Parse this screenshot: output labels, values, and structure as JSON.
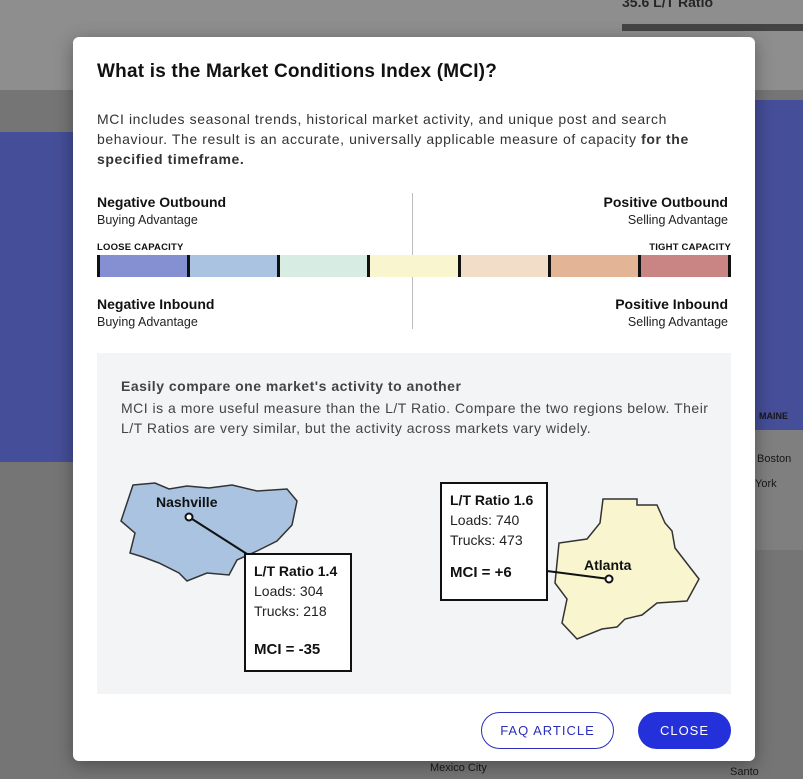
{
  "background": {
    "ratio_text": "35.6 L/T Ratio",
    "labels": {
      "maine": "MAINE",
      "boston": "Boston",
      "york": "York",
      "mexico_city": "Mexico City",
      "santo": "Santo"
    }
  },
  "modal": {
    "title": "What is the Market Conditions Index (MCI)?",
    "description": "MCI includes seasonal trends, historical market activity, and unique post and search behaviour. The result is an accurate, universally applicable measure of capacity",
    "description_bold": "for the specified timeframe.",
    "scale": {
      "top_left": {
        "heading": "Negative Outbound",
        "sub": "Buying Advantage"
      },
      "top_right": {
        "heading": "Positive Outbound",
        "sub": "Selling Advantage"
      },
      "bottom_left": {
        "heading": "Negative Inbound",
        "sub": "Buying Advantage"
      },
      "bottom_right": {
        "heading": "Positive Inbound",
        "sub": "Selling Advantage"
      },
      "loose_label": "LOOSE CAPACITY",
      "tight_label": "TIGHT CAPACITY",
      "colors": [
        "#8590d3",
        "#a9c3e1",
        "#d7ece2",
        "#f8f5cf",
        "#f2ddc9",
        "#e4b496",
        "#c98583"
      ]
    },
    "compare": {
      "heading": "Easily compare one market's activity to another",
      "body": "MCI is a more useful measure than the L/T Ratio. Compare the two regions below. Their L/T Ratios are very similar, but the activity across markets vary widely.",
      "nashville": {
        "city": "Nashville",
        "ratio": "L/T Ratio 1.4",
        "loads": "Loads: 304",
        "trucks": "Trucks: 218",
        "mci": "MCI = -35",
        "fill": "#a9c3e1"
      },
      "atlanta": {
        "city": "Atlanta",
        "ratio": "L/T Ratio 1.6",
        "loads": "Loads: 740",
        "trucks": "Trucks: 473",
        "mci": "MCI = +6",
        "fill": "#f8f5cf"
      }
    },
    "buttons": {
      "faq": "FAQ ARTICLE",
      "close": "CLOSE"
    }
  }
}
